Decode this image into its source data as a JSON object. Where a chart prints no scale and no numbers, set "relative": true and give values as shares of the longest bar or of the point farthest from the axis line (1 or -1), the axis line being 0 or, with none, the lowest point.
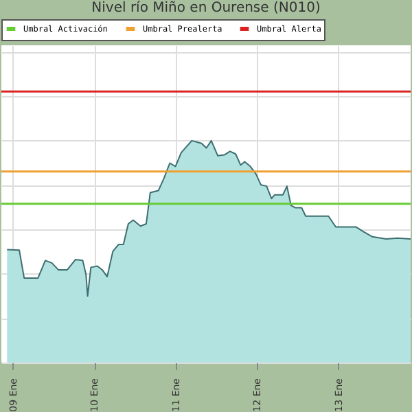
{
  "chart_data": {
    "type": "area",
    "title": "Nivel río Miño en Ourense  (N010)",
    "relative": true,
    "x": [
      8.93,
      9.08,
      9.14,
      9.31,
      9.4,
      9.48,
      9.56,
      9.67,
      9.77,
      9.86,
      9.9,
      9.92,
      9.96,
      10.04,
      10.1,
      10.16,
      10.23,
      10.3,
      10.36,
      10.42,
      10.48,
      10.57,
      10.64,
      10.69,
      10.79,
      10.86,
      10.93,
      11.0,
      11.07,
      11.2,
      11.32,
      11.38,
      11.44,
      11.52,
      11.6,
      11.67,
      11.74,
      11.8,
      11.85,
      11.92,
      11.99,
      12.05,
      12.12,
      12.18,
      12.22,
      12.32,
      12.37,
      12.42,
      12.47,
      12.55,
      12.6,
      12.88,
      12.97,
      13.22,
      13.31,
      13.42,
      13.59,
      13.73,
      13.89
    ],
    "series": [
      {
        "color": "#b2e3e1",
        "values": [
          0.509,
          0.507,
          0.381,
          0.381,
          0.46,
          0.449,
          0.418,
          0.418,
          0.464,
          0.46,
          0.397,
          0.3,
          0.429,
          0.435,
          0.418,
          0.387,
          0.501,
          0.532,
          0.532,
          0.625,
          0.642,
          0.615,
          0.625,
          0.766,
          0.775,
          0.832,
          0.899,
          0.884,
          0.946,
          1.0,
          0.988,
          0.967,
          1.0,
          0.932,
          0.936,
          0.952,
          0.94,
          0.89,
          0.905,
          0.884,
          0.849,
          0.801,
          0.795,
          0.739,
          0.756,
          0.756,
          0.795,
          0.708,
          0.698,
          0.698,
          0.66,
          0.66,
          0.611,
          0.611,
          0.59,
          0.567,
          0.557,
          0.561,
          0.557
        ]
      }
    ],
    "xlim": [
      8.86,
      13.89
    ],
    "xticks": [
      {
        "value": 9,
        "label": "09 Ene"
      },
      {
        "value": 10,
        "label": "10 Ene"
      },
      {
        "value": 11,
        "label": "11 Ene"
      },
      {
        "value": 12,
        "label": "12 Ene"
      },
      {
        "value": 13,
        "label": "13 Ene"
      }
    ],
    "ref_lines": [
      {
        "axis": "y",
        "value": 0.716,
        "label": "Umbral Activación",
        "color": "#66cc33"
      },
      {
        "axis": "y",
        "value": 0.861,
        "label": "Umbral Prealerta",
        "color": "#f0a030"
      },
      {
        "axis": "y",
        "value": 1.222,
        "label": "Umbral Alerta",
        "color": "#dd2222"
      }
    ],
    "grid": true,
    "legend": "top"
  }
}
